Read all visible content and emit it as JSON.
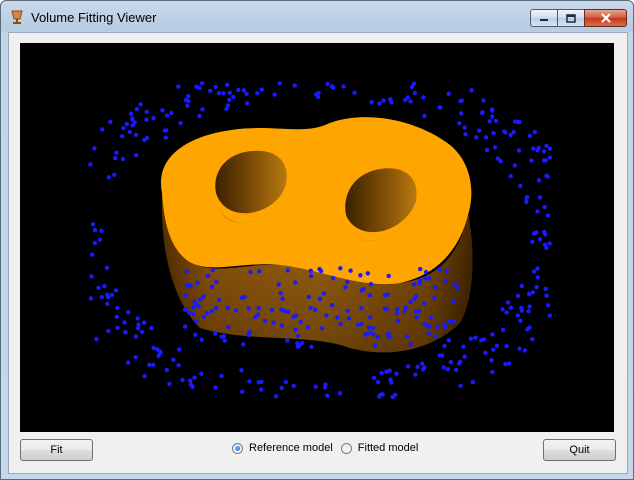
{
  "window": {
    "title": "Volume Fitting Viewer",
    "app_icon": "cup-icon",
    "controls": [
      "minimize-icon",
      "maximize-icon",
      "close-icon"
    ]
  },
  "viewport": {
    "background": "#000000",
    "shape_color": "#ffa500",
    "point_color": "#1a1aff"
  },
  "controls": {
    "fit_label": "Fit",
    "quit_label": "Quit",
    "model_options": [
      {
        "label": "Reference model",
        "selected": true
      },
      {
        "label": "Fitted model",
        "selected": false
      }
    ]
  }
}
